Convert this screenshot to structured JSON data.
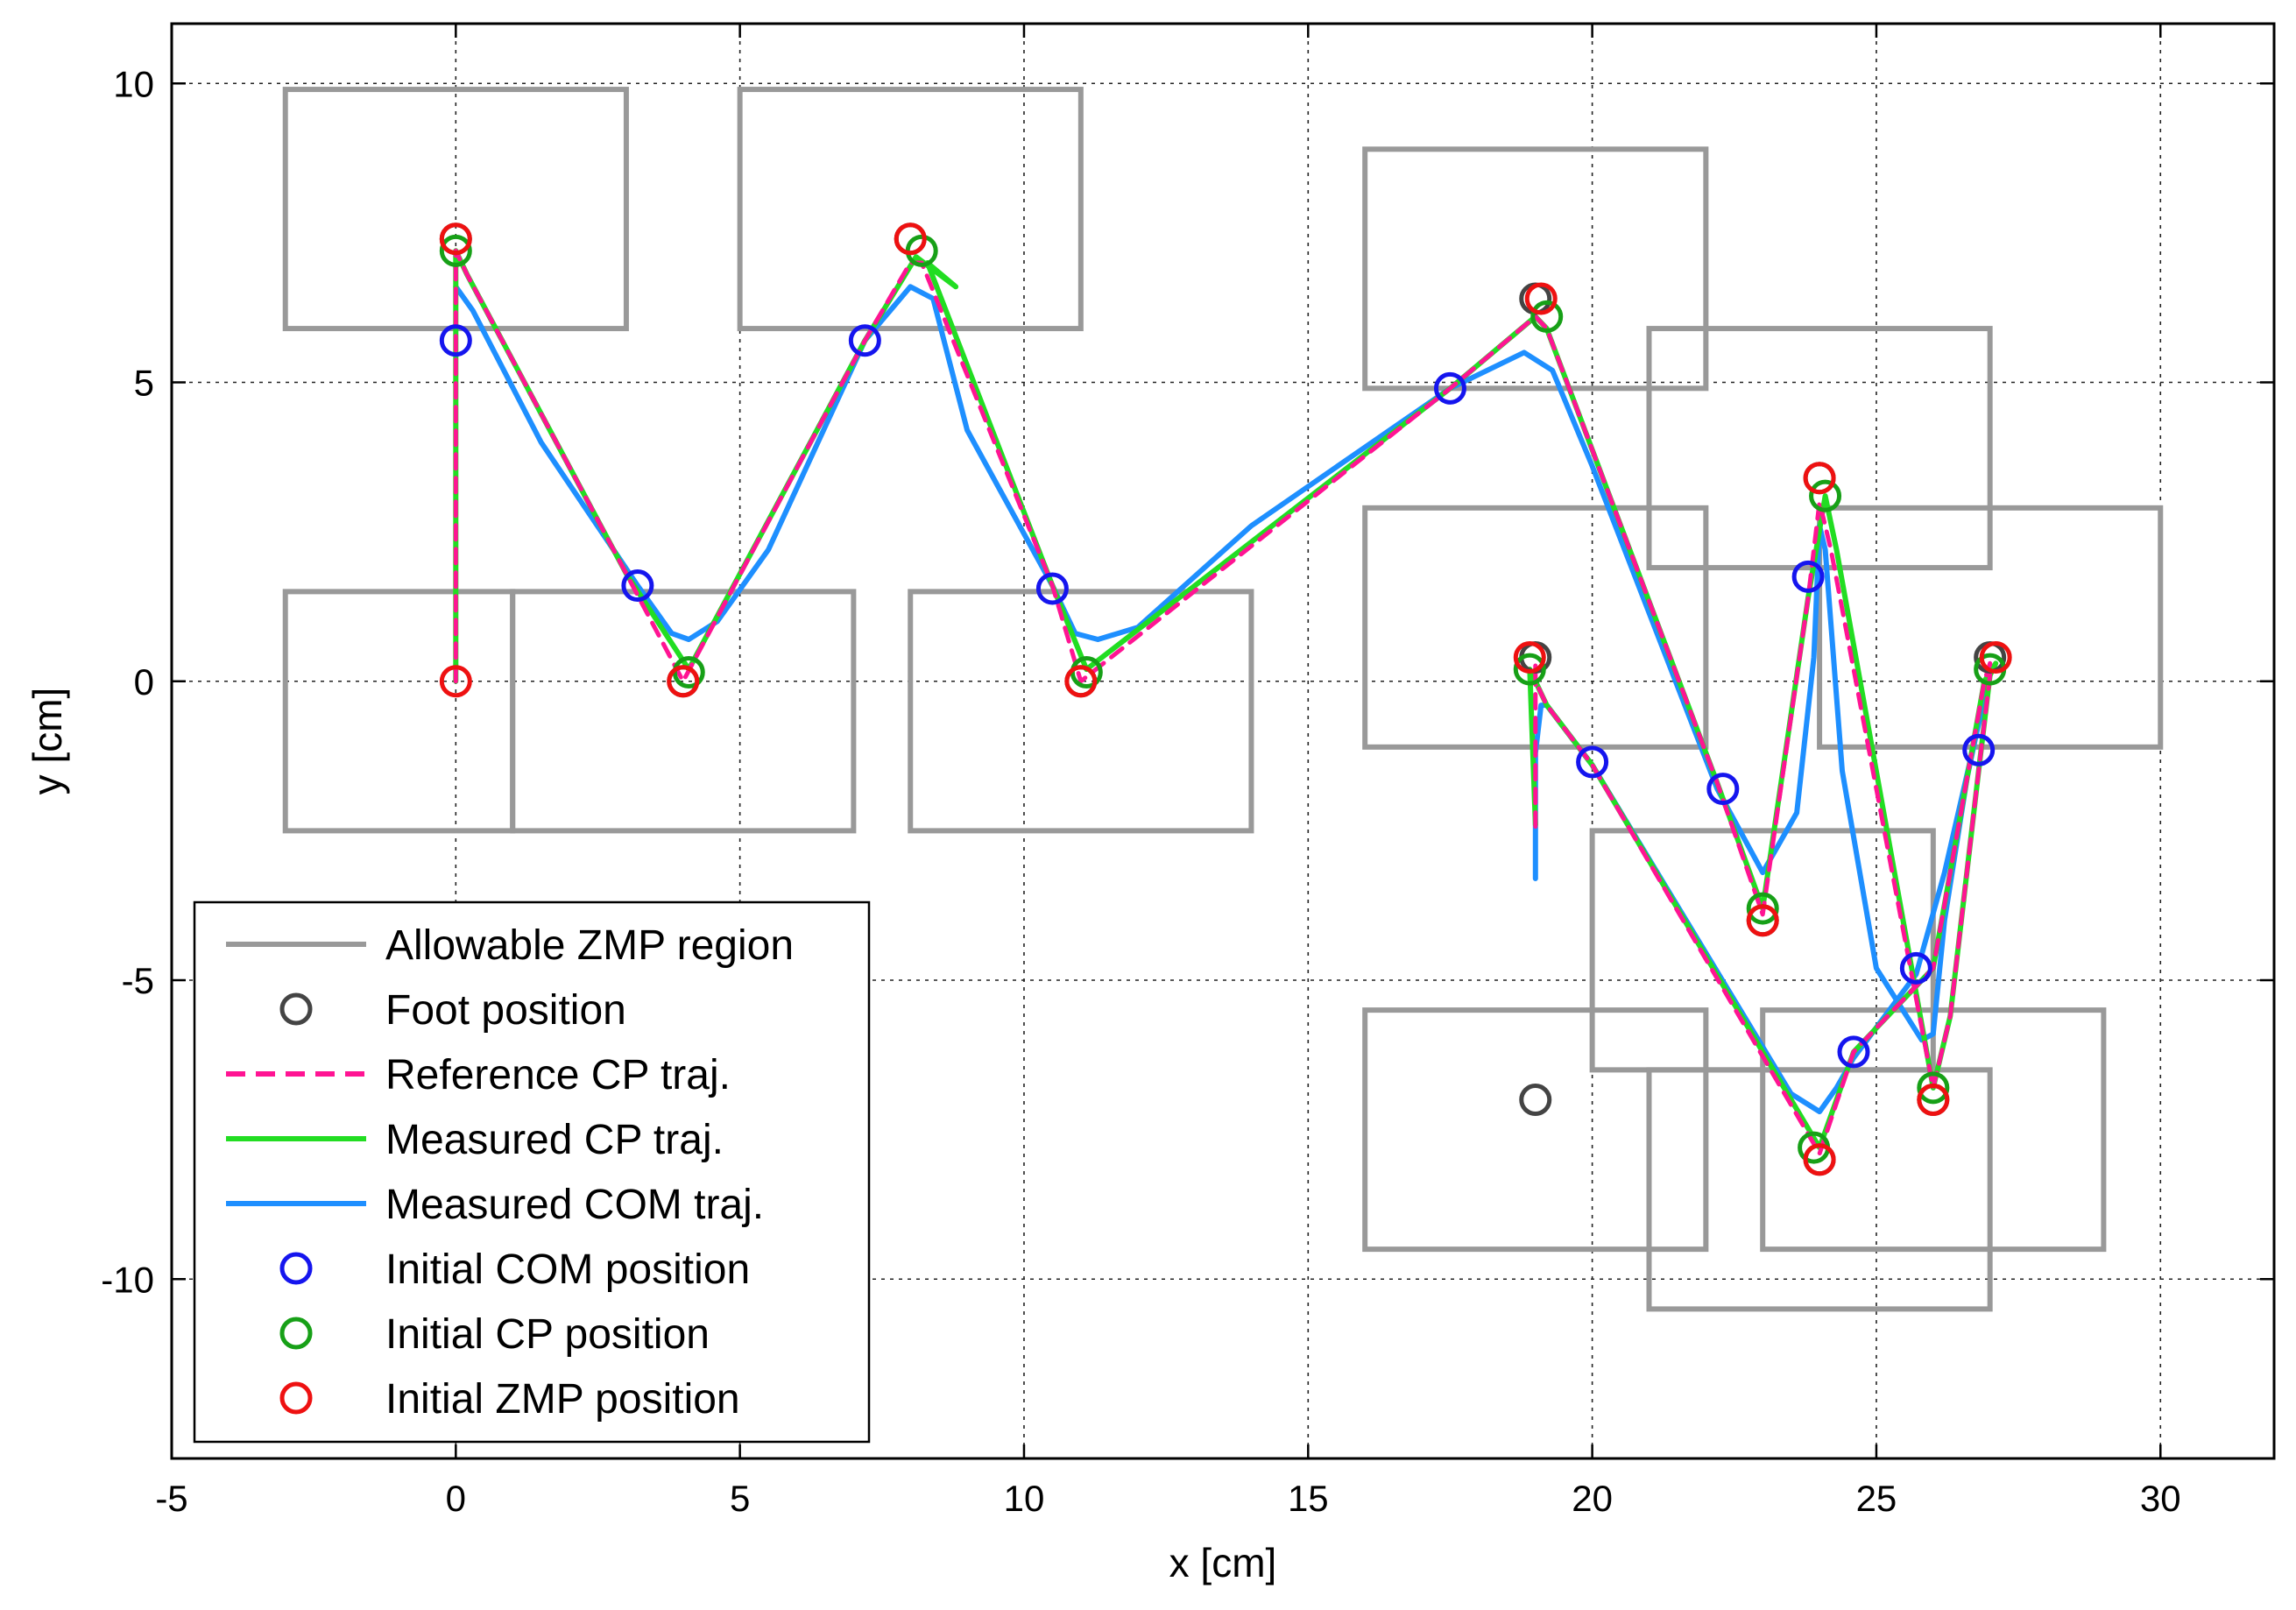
{
  "chart_data": {
    "type": "line",
    "xlabel": "x [cm]",
    "ylabel": "y [cm]",
    "xlim": [
      -5,
      32
    ],
    "ylim": [
      -13,
      11
    ],
    "xticks": [
      -5,
      0,
      5,
      10,
      15,
      20,
      25,
      30
    ],
    "yticks": [
      -10,
      -5,
      0,
      5,
      10
    ],
    "xtick_labels": [
      "-5",
      "0",
      "5",
      "10",
      "15",
      "20",
      "25",
      "30"
    ],
    "ytick_labels": [
      "-10",
      "-5",
      "0",
      "5",
      "10"
    ],
    "grid": true,
    "legend_position": "bottom-left",
    "colors": {
      "region": "#999999",
      "foot": "#444444",
      "reference_cp": "#ff1493",
      "measured_cp": "#22dd22",
      "measured_com": "#1e8fff",
      "init_com": "#1515ee",
      "init_cp": "#17a017",
      "init_zmp": "#ee1111"
    },
    "legend": [
      {
        "key": "region",
        "label": "Allowable ZMP region",
        "style": "line"
      },
      {
        "key": "foot",
        "label": "Foot position",
        "style": "marker"
      },
      {
        "key": "reference_cp",
        "label": "Reference CP traj.",
        "style": "dashed"
      },
      {
        "key": "measured_cp",
        "label": "Measured CP traj.",
        "style": "line"
      },
      {
        "key": "measured_com",
        "label": "Measured COM traj.",
        "style": "line"
      },
      {
        "key": "init_com",
        "label": "Initial COM position",
        "style": "marker"
      },
      {
        "key": "init_cp",
        "label": "Initial CP position",
        "style": "marker"
      },
      {
        "key": "init_zmp",
        "label": "Initial ZMP position",
        "style": "marker"
      }
    ],
    "regions": [
      [
        -3,
        5.9,
        3,
        9.9
      ],
      [
        5,
        5.9,
        11,
        9.9
      ],
      [
        -3,
        -2.5,
        1,
        1.5
      ],
      [
        1,
        -2.5,
        7,
        1.5
      ],
      [
        8,
        -2.5,
        14,
        1.5
      ],
      [
        16,
        4.9,
        22,
        8.9
      ],
      [
        21,
        1.9,
        27,
        5.9
      ],
      [
        16,
        -1.1,
        22,
        2.9
      ],
      [
        24,
        -1.1,
        30,
        2.9
      ],
      [
        20,
        -6.5,
        26,
        -2.5
      ],
      [
        16,
        -9.5,
        22,
        -5.5
      ],
      [
        21,
        -10.5,
        27,
        -6.5
      ],
      [
        23,
        -9.5,
        29,
        -5.5
      ]
    ],
    "foot_positions": [
      [
        0,
        7.4
      ],
      [
        8,
        7.4
      ],
      [
        4,
        0
      ],
      [
        11,
        0
      ],
      [
        19,
        6.4
      ],
      [
        19,
        0.4
      ],
      [
        24,
        3.4
      ],
      [
        23,
        -4.0
      ],
      [
        27,
        0.4
      ],
      [
        24,
        -8
      ],
      [
        26,
        -7
      ],
      [
        19,
        -7
      ]
    ],
    "reference_cp": {
      "x": [
        0,
        0,
        0.2,
        3.0,
        4.0,
        7.2,
        8.0,
        8.2,
        10.5,
        11.0,
        17.5,
        19.0,
        19.2,
        22.2,
        23.0,
        23.8,
        24.0,
        24.2,
        26.0,
        26.3,
        26.8,
        27.0,
        27.0,
        26.9,
        26.0,
        25.7,
        24.6,
        24.0,
        20.0,
        19.2,
        19.0,
        19.0,
        19.0
      ],
      "y": [
        0,
        7.2,
        6.8,
        1.8,
        0.0,
        5.7,
        7.0,
        7.0,
        1.6,
        0.0,
        4.9,
        6.1,
        5.9,
        -1.7,
        -3.9,
        1.4,
        3.0,
        2.2,
        -6.8,
        -5.6,
        -1.5,
        0.1,
        0.3,
        0.0,
        -4.8,
        -5.1,
        -6.2,
        -7.9,
        -1.4,
        -0.4,
        0.0,
        0.3,
        -2.5
      ]
    },
    "measured_cp": {
      "x": [
        0,
        0,
        0.2,
        3.0,
        4.1,
        7.2,
        8.1,
        8.8,
        8.3,
        10.5,
        11.1,
        17.5,
        19.0,
        19.2,
        22.2,
        23.0,
        23.8,
        24.1,
        24.3,
        26.0,
        26.3,
        26.8,
        27.0,
        27.1,
        26.9,
        26.0,
        25.7,
        24.6,
        24.0,
        20.0,
        19.2,
        19.0,
        18.9,
        19.0
      ],
      "y": [
        0,
        7.2,
        6.8,
        1.8,
        0.2,
        5.7,
        7.1,
        6.6,
        7.0,
        1.6,
        0.2,
        4.9,
        6.1,
        5.9,
        -1.7,
        -3.8,
        1.4,
        3.1,
        2.2,
        -6.8,
        -5.6,
        -1.5,
        0.1,
        0.3,
        0.0,
        -4.8,
        -5.1,
        -6.2,
        -7.8,
        -1.4,
        -0.4,
        0.0,
        0.2,
        -2.4
      ]
    },
    "measured_com": {
      "x": [
        0.0,
        0.3,
        1.5,
        3.2,
        3.8,
        4.1,
        4.6,
        5.5,
        7.2,
        8.0,
        8.4,
        9.0,
        10.5,
        10.9,
        11.3,
        12.0,
        14.0,
        17.5,
        18.8,
        19.3,
        20.0,
        22.2,
        23.0,
        23.6,
        23.9,
        24.0,
        24.1,
        24.4,
        25.0,
        25.8,
        26.0,
        26.2,
        26.6,
        27.0,
        26.9,
        26.2,
        25.7,
        24.6,
        24.3,
        24.0,
        23.5,
        20.0,
        19.2,
        19.1,
        19.0,
        19.0
      ],
      "y": [
        6.6,
        6.2,
        4.0,
        1.6,
        0.8,
        0.7,
        1.0,
        2.2,
        5.7,
        6.6,
        6.4,
        4.2,
        1.6,
        0.8,
        0.7,
        0.9,
        2.6,
        4.9,
        5.5,
        5.2,
        3.6,
        -1.8,
        -3.2,
        -2.2,
        0.4,
        2.6,
        2.2,
        -1.5,
        -4.8,
        -6.0,
        -5.9,
        -4.0,
        -1.6,
        0.2,
        -0.3,
        -3.2,
        -4.9,
        -6.3,
        -6.8,
        -7.2,
        -6.9,
        -1.4,
        -0.4,
        -0.4,
        -1.2,
        -3.3
      ]
    },
    "initial_com": [
      [
        0,
        5.7
      ],
      [
        3.2,
        1.6
      ],
      [
        7.2,
        5.7
      ],
      [
        10.5,
        1.55
      ],
      [
        17.5,
        4.9
      ],
      [
        20.0,
        -1.35
      ],
      [
        22.3,
        -1.8
      ],
      [
        23.8,
        1.75
      ],
      [
        24.6,
        -6.2
      ],
      [
        25.7,
        -4.8
      ],
      [
        26.8,
        -1.15
      ]
    ],
    "initial_cp": [
      [
        0,
        7.2
      ],
      [
        4.1,
        0.15
      ],
      [
        8.2,
        7.2
      ],
      [
        11.1,
        0.15
      ],
      [
        19.2,
        6.1
      ],
      [
        18.9,
        0.2
      ],
      [
        24.1,
        3.1
      ],
      [
        23.0,
        -3.8
      ],
      [
        27.0,
        0.2
      ],
      [
        23.9,
        -7.8
      ],
      [
        26.0,
        -6.8
      ]
    ],
    "initial_zmp": [
      [
        0,
        0
      ],
      [
        0,
        7.4
      ],
      [
        4.0,
        0
      ],
      [
        8.0,
        7.4
      ],
      [
        11.0,
        0
      ],
      [
        19.1,
        6.4
      ],
      [
        18.9,
        0.4
      ],
      [
        24.0,
        3.4
      ],
      [
        23.0,
        -4.0
      ],
      [
        27.1,
        0.4
      ],
      [
        24.0,
        -8.0
      ],
      [
        26.0,
        -7.0
      ]
    ]
  }
}
